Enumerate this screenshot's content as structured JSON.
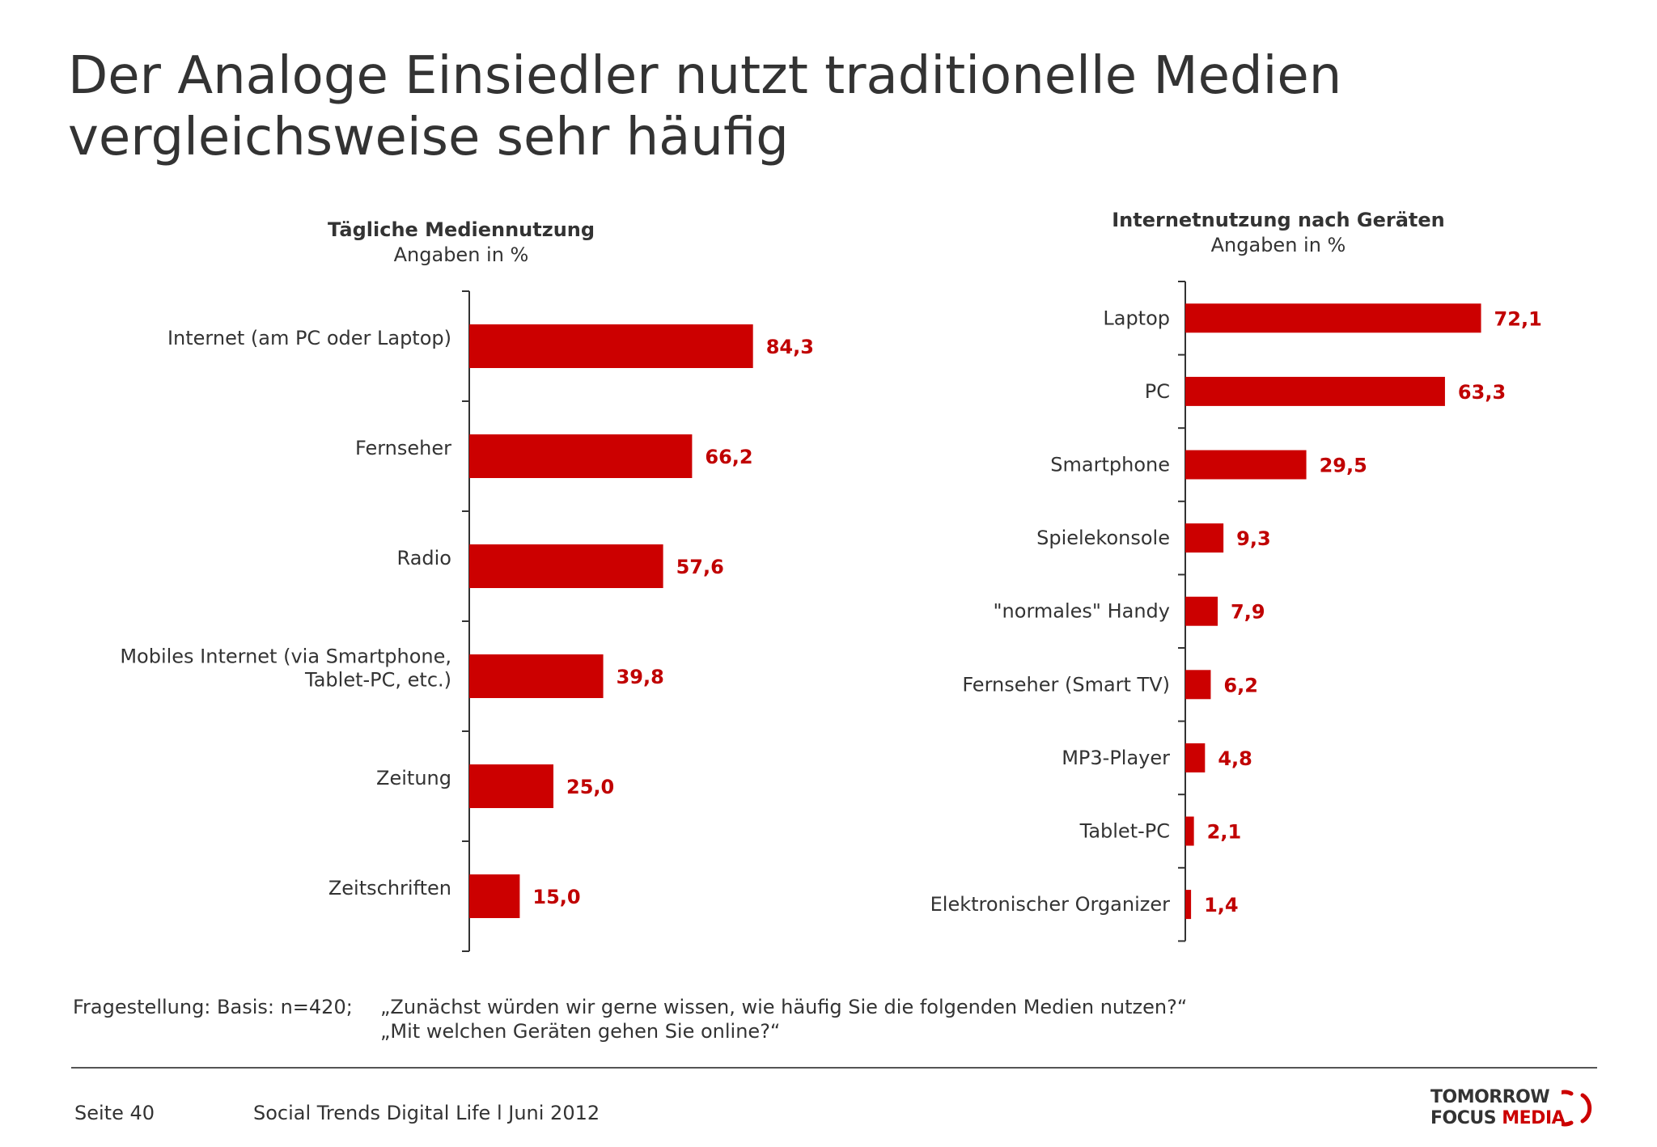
{
  "title": "Der Analoge Einsiedler nutzt traditionelle Medien vergleichsweise sehr häufig",
  "colors": {
    "bar": "#cc0000",
    "value_label": "#c00000",
    "text": "#333333"
  },
  "chart_data": [
    {
      "type": "bar",
      "orientation": "horizontal",
      "title": "Tägliche Mediennutzung",
      "subtitle": "Angaben in %",
      "categories": [
        [
          "Internet (am PC oder Laptop)"
        ],
        [
          "Fernseher"
        ],
        [
          "Radio"
        ],
        [
          "Mobiles Internet (via Smartphone,",
          "Tablet-PC, etc.)"
        ],
        [
          "Zeitung"
        ],
        [
          "Zeitschriften"
        ]
      ],
      "values": [
        84.3,
        66.2,
        57.6,
        39.8,
        25.0,
        15.0
      ],
      "value_labels": [
        "84,3",
        "66,2",
        "57,6",
        "39,8",
        "25,0",
        "15,0"
      ],
      "xlim": [
        0,
        100
      ]
    },
    {
      "type": "bar",
      "orientation": "horizontal",
      "title": "Internetnutzung nach Geräten",
      "subtitle": "Angaben in %",
      "categories": [
        [
          "Laptop"
        ],
        [
          "PC"
        ],
        [
          "Smartphone"
        ],
        [
          "Spielekonsole"
        ],
        [
          "\"normales\" Handy"
        ],
        [
          "Fernseher (Smart TV)"
        ],
        [
          "MP3-Player"
        ],
        [
          "Tablet-PC"
        ],
        [
          "Elektronischer Organizer"
        ]
      ],
      "values": [
        72.1,
        63.3,
        29.5,
        9.3,
        7.9,
        6.2,
        4.8,
        2.1,
        1.4
      ],
      "value_labels": [
        "72,1",
        "63,3",
        "29,5",
        "9,3",
        "7,9",
        "6,2",
        "4,8",
        "2,1",
        "1,4"
      ],
      "xlim": [
        0,
        100
      ]
    }
  ],
  "footnote": {
    "label": "Fragestellung: Basis: n=420;",
    "questions": [
      "„Zunächst würden wir gerne wissen, wie häufig Sie die folgenden Medien nutzen?“",
      "„Mit welchen Geräten gehen Sie online?“"
    ]
  },
  "footer": {
    "page": "Seite  40",
    "source": "Social Trends Digital Life l Juni 2012",
    "logo_line1": "TOMORROW",
    "logo_line2_a": "FOCUS",
    "logo_line2_b": "MEDIA"
  }
}
